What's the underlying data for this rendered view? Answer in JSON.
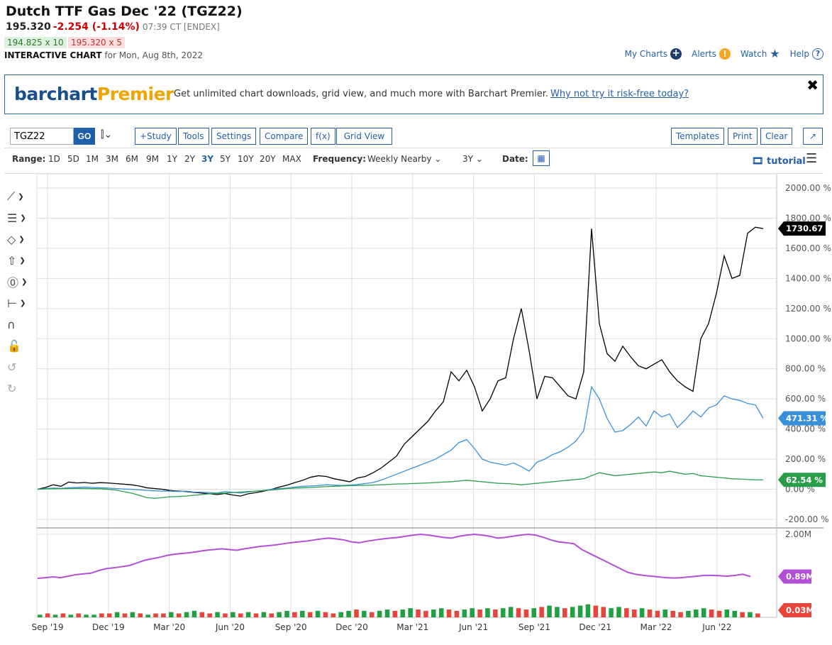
{
  "header": {
    "title": "Dutch TTF Gas Dec '22 (TGZ22)",
    "last": "195.320",
    "change": "-2.254 (-1.14%)",
    "meta": "07:39 CT [ENDEX]",
    "bid": "194.825 x 10",
    "ask": "195.320 x 5",
    "subtitle_bold": "INTERACTIVE CHART",
    "subtitle_rest": "for Mon, Aug 8th, 2022"
  },
  "toplinks": {
    "my_charts": "My Charts",
    "alerts": "Alerts",
    "watch": "Watch",
    "help": "Help"
  },
  "promo": {
    "logo_a": "barchart",
    "logo_b": "Premier",
    "message": "Get unlimited chart downloads, grid view, and much more with Barchart Premier.",
    "link": "Why not try it risk-free today?",
    "close": "✖"
  },
  "toolbar": {
    "symbol": "TGZ22",
    "go": "GO",
    "study": "+Study",
    "tools": "Tools",
    "settings": "Settings",
    "compare": "Compare",
    "fx": "f(x)",
    "grid": "Grid View",
    "templates": "Templates",
    "print": "Print",
    "clear": "Clear",
    "expand": "↗"
  },
  "range": {
    "label": "Range:",
    "options": [
      "1D",
      "5D",
      "1M",
      "3M",
      "6M",
      "9M",
      "1Y",
      "2Y",
      "3Y",
      "5Y",
      "10Y",
      "20Y",
      "MAX"
    ],
    "active": "3Y",
    "frequency_label": "Frequency:",
    "frequency": "Weekly Nearby",
    "period": "3Y",
    "date_label": "Date:",
    "tutorial": "tutorial"
  },
  "chart_data": {
    "type": "line",
    "price_axis": [
      "2000.00 %",
      "1800.00 %",
      "1600.00 %",
      "1400.00 %",
      "1200.00 %",
      "1000.00 %",
      "800.00 %",
      "600.00 %",
      "400.00 %",
      "200.00 %",
      "0.00 %",
      "-200.00 %"
    ],
    "ylim": [
      -200,
      2000
    ],
    "x_ticks": [
      "Sep '19",
      "Dec '19",
      "Mar '20",
      "Jun '20",
      "Sep '20",
      "Dec '20",
      "Mar '21",
      "Jun '21",
      "Sep '21",
      "Dec '21",
      "Mar '22",
      "Jun '22"
    ],
    "grid": true,
    "series": [
      {
        "color": "#000000",
        "last_label": "1730.67 %",
        "values": [
          0,
          12,
          30,
          20,
          48,
          42,
          45,
          40,
          44,
          42,
          38,
          34,
          30,
          22,
          10,
          5,
          0,
          -8,
          -12,
          -15,
          -20,
          -25,
          -30,
          -35,
          -28,
          -38,
          -45,
          -30,
          -22,
          -12,
          0,
          15,
          28,
          45,
          60,
          80,
          90,
          85,
          70,
          60,
          50,
          75,
          85,
          110,
          140,
          180,
          220,
          300,
          350,
          400,
          450,
          520,
          580,
          780,
          720,
          790,
          680,
          520,
          600,
          720,
          740,
          1000,
          1200,
          920,
          600,
          750,
          740,
          680,
          620,
          600,
          780,
          1730,
          1100,
          900,
          850,
          950,
          880,
          820,
          800,
          830,
          860,
          780,
          720,
          680,
          650,
          1000,
          1100,
          1300,
          1550,
          1400,
          1420,
          1700,
          1740,
          1730.67
        ]
      },
      {
        "color": "#3a8fd9",
        "last_label": "471.31 %",
        "values": [
          0,
          5,
          8,
          6,
          10,
          12,
          14,
          12,
          10,
          8,
          5,
          2,
          0,
          -3,
          -8,
          -10,
          -12,
          -12,
          -15,
          -12,
          -18,
          -20,
          -22,
          -25,
          -15,
          -20,
          -25,
          -18,
          -12,
          -8,
          0,
          5,
          8,
          15,
          20,
          22,
          25,
          30,
          28,
          25,
          28,
          32,
          38,
          45,
          60,
          80,
          100,
          120,
          140,
          160,
          180,
          200,
          230,
          260,
          310,
          330,
          270,
          200,
          180,
          170,
          160,
          175,
          150,
          120,
          180,
          200,
          230,
          250,
          280,
          320,
          390,
          680,
          600,
          470,
          380,
          390,
          430,
          480,
          420,
          520,
          480,
          500,
          410,
          460,
          520,
          480,
          540,
          560,
          620,
          600,
          590,
          570,
          560,
          471.31
        ]
      },
      {
        "color": "#2a9d4a",
        "last_label": "62.54 %",
        "values": [
          0,
          2,
          3,
          4,
          5,
          6,
          5,
          4,
          3,
          0,
          -5,
          -15,
          -25,
          -40,
          -55,
          -60,
          -55,
          -50,
          -48,
          -45,
          -40,
          -35,
          -30,
          -28,
          -25,
          -22,
          -18,
          -15,
          -12,
          -8,
          -5,
          0,
          5,
          8,
          10,
          12,
          15,
          18,
          20,
          22,
          24,
          25,
          26,
          28,
          30,
          32,
          35,
          36,
          38,
          40,
          42,
          45,
          48,
          50,
          55,
          60,
          55,
          50,
          45,
          40,
          38,
          35,
          30,
          35,
          40,
          45,
          50,
          55,
          60,
          65,
          70,
          90,
          110,
          100,
          90,
          95,
          100,
          105,
          110,
          115,
          110,
          120,
          110,
          100,
          105,
          90,
          85,
          80,
          75,
          70,
          68,
          65,
          63,
          62.54
        ]
      }
    ],
    "oi_axis": [
      "2.00M"
    ],
    "oi_last_label": "0.89M",
    "oi_values": [
      0.84,
      0.86,
      0.88,
      0.86,
      0.9,
      0.94,
      0.96,
      0.98,
      1.05,
      1.1,
      1.12,
      1.15,
      1.18,
      1.25,
      1.32,
      1.36,
      1.4,
      1.45,
      1.48,
      1.5,
      1.52,
      1.55,
      1.58,
      1.6,
      1.62,
      1.6,
      1.58,
      1.62,
      1.65,
      1.68,
      1.7,
      1.72,
      1.75,
      1.78,
      1.8,
      1.82,
      1.85,
      1.88,
      1.9,
      1.88,
      1.85,
      1.8,
      1.78,
      1.82,
      1.85,
      1.88,
      1.9,
      1.92,
      1.95,
      1.98,
      2.0,
      1.98,
      1.95,
      1.92,
      1.9,
      1.95,
      1.98,
      2.0,
      1.98,
      1.95,
      1.9,
      1.92,
      1.95,
      1.98,
      2.0,
      1.98,
      1.92,
      1.85,
      1.8,
      1.78,
      1.75,
      1.6,
      1.5,
      1.4,
      1.3,
      1.2,
      1.1,
      1.0,
      0.95,
      0.92,
      0.9,
      0.88,
      0.86,
      0.85,
      0.86,
      0.88,
      0.9,
      0.92,
      0.92,
      0.91,
      0.9,
      0.92,
      0.95,
      0.89
    ],
    "vol_last_label": "0.03M",
    "vol_values": [
      0.02,
      0.03,
      0.02,
      0.03,
      0.02,
      0.03,
      0.02,
      0.02,
      0.03,
      0.03,
      0.04,
      0.03,
      0.04,
      0.03,
      0.02,
      0.03,
      0.03,
      0.04,
      0.03,
      0.04,
      0.05,
      0.04,
      0.03,
      0.04,
      0.03,
      0.04,
      0.03,
      0.04,
      0.03,
      0.04,
      0.03,
      0.04,
      0.05,
      0.04,
      0.05,
      0.04,
      0.05,
      0.04,
      0.03,
      0.04,
      0.05,
      0.06,
      0.05,
      0.04,
      0.05,
      0.06,
      0.05,
      0.06,
      0.07,
      0.06,
      0.05,
      0.06,
      0.07,
      0.06,
      0.05,
      0.06,
      0.07,
      0.06,
      0.07,
      0.06,
      0.07,
      0.08,
      0.07,
      0.06,
      0.07,
      0.08,
      0.09,
      0.08,
      0.07,
      0.08,
      0.09,
      0.1,
      0.09,
      0.08,
      0.07,
      0.08,
      0.07,
      0.06,
      0.07,
      0.06,
      0.05,
      0.06,
      0.05,
      0.04,
      0.05,
      0.06,
      0.07,
      0.06,
      0.05,
      0.06,
      0.05,
      0.04,
      0.04,
      0.03
    ],
    "vol_up": [
      1,
      0,
      1,
      0,
      1,
      0,
      1,
      1,
      0,
      0,
      1,
      0,
      1,
      0,
      1,
      0,
      0,
      1,
      0,
      1,
      1,
      0,
      0,
      1,
      0,
      1,
      0,
      1,
      0,
      1,
      0,
      1,
      1,
      0,
      1,
      0,
      1,
      0,
      0,
      1,
      1,
      0,
      1,
      0,
      1,
      1,
      0,
      1,
      1,
      0,
      0,
      1,
      1,
      0,
      0,
      1,
      1,
      0,
      1,
      0,
      1,
      1,
      0,
      0,
      1,
      0,
      1,
      1,
      0,
      1,
      1,
      1,
      0,
      0,
      1,
      1,
      0,
      0,
      1,
      0,
      0,
      1,
      0,
      0,
      1,
      1,
      1,
      0,
      0,
      1,
      1,
      0,
      1,
      0
    ]
  }
}
